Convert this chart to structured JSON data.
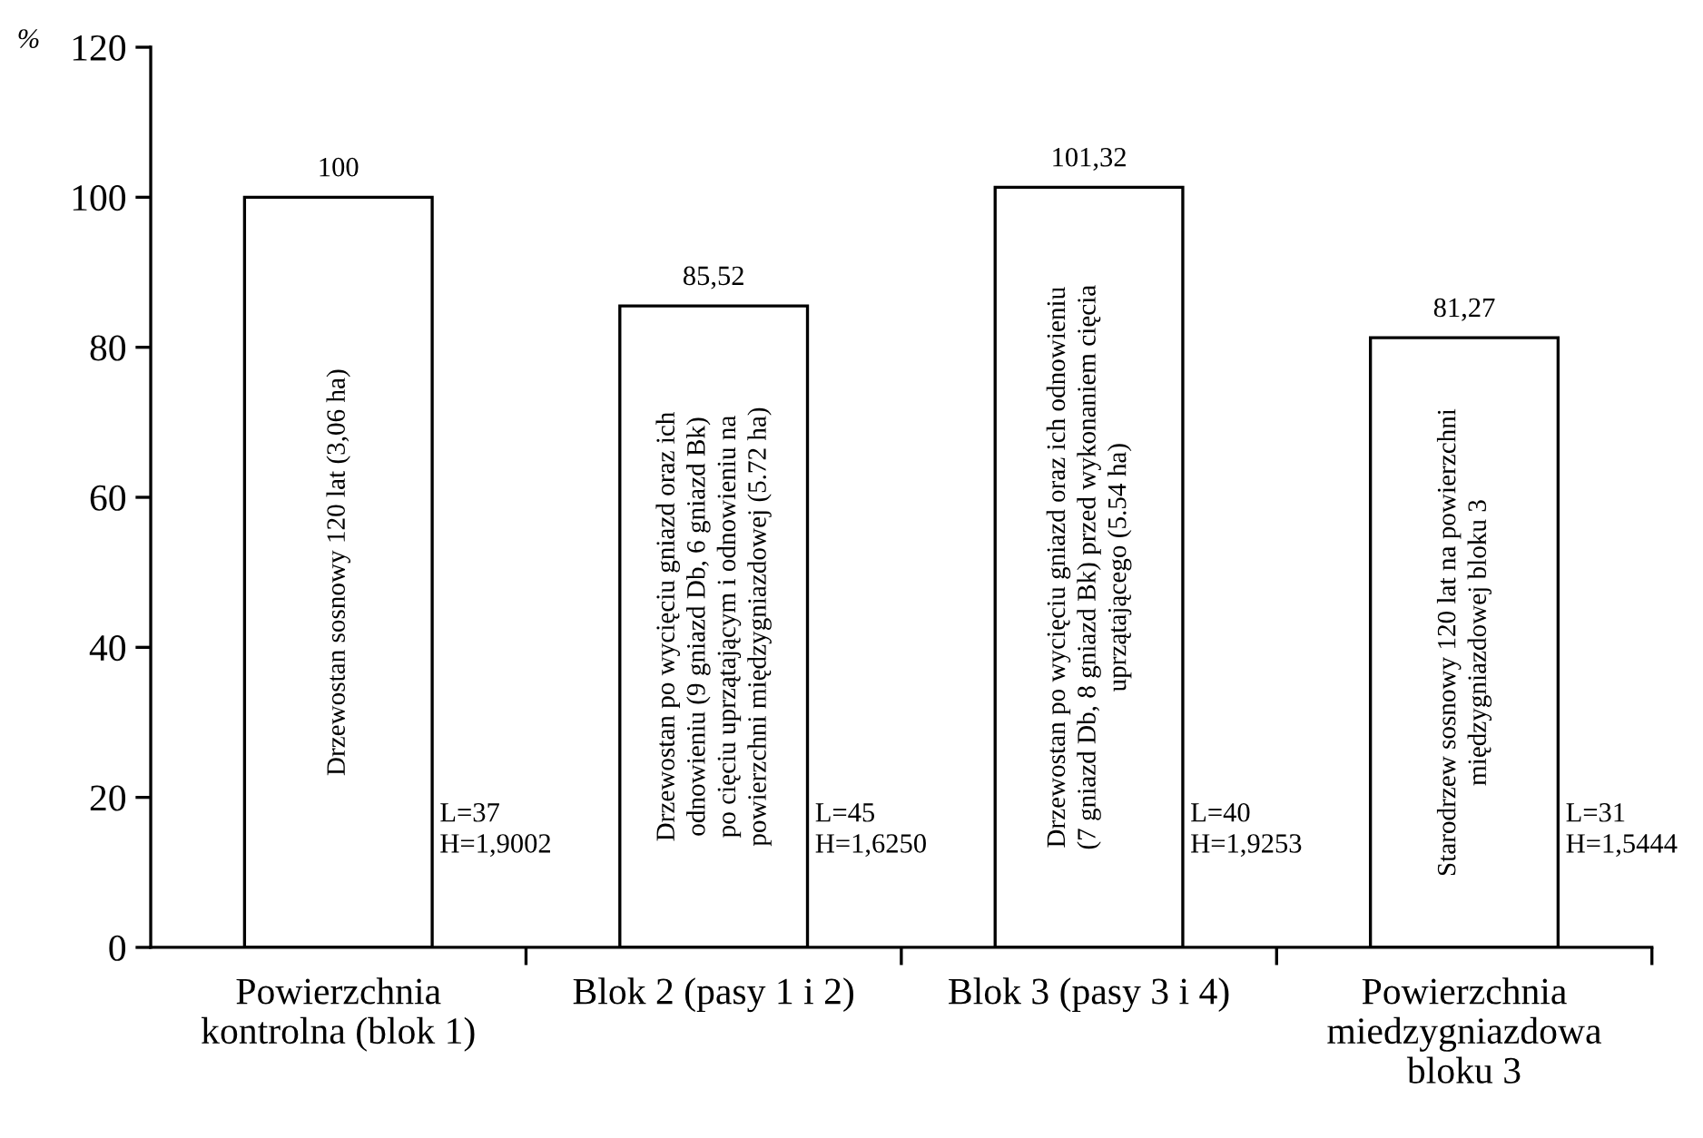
{
  "chart_data": {
    "type": "bar",
    "ylabel": "%",
    "categories": [
      "Powierzchnia\nkontrolna (blok 1)",
      "Blok 2 (pasy 1 i 2)",
      "Blok 3 (pasy 3 i 4)",
      "Powierzchnia\nmiedzygniazdowa\nbloku 3"
    ],
    "values": [
      100,
      85.52,
      101.32,
      81.27
    ],
    "value_labels": [
      "100",
      "85,52",
      "101,32",
      "81,27"
    ],
    "color": "#ffffff",
    "ylim": [
      0,
      120
    ],
    "yticks": [
      0,
      20,
      40,
      60,
      80,
      100,
      120
    ],
    "grid": false,
    "legend": false,
    "annotations": [
      "Drzewostan sosnowy 120 lat (3,06 ha)",
      "L=37\nH=1,9002",
      "Drzewostan po wycięciu gniazd oraz ich\nodnowieniu (9 gniazd Db, 6 gniazd Bk)\npo cięciu uprzątającym i odnowieniu na\npowierzchni międzygniazdowej (5.72 ha)",
      "L=45\nH=1,6250",
      "Drzewostan po wycięciu gniazd oraz ich odnowieniu\n(7 gniazd Db, 8 gniazd Bk) przed wykonaniem cięcia\nuprzątającego (5.54 ha)",
      "L=40\nH=1,9253",
      "Starodrzew sosnowy 120 lat na powierzchni\nmiędzygniazdowej bloku 3",
      "L=31\nH=1,5444"
    ]
  }
}
